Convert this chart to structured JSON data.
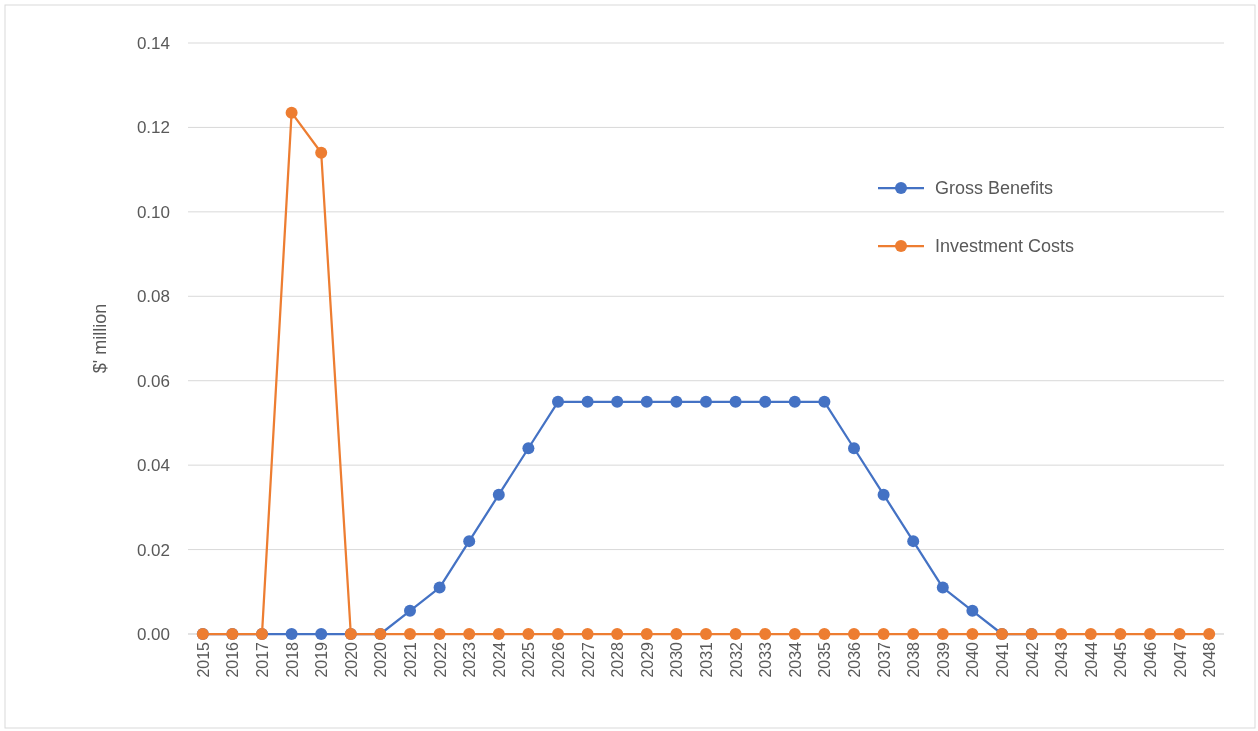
{
  "chart_data": {
    "type": "line",
    "ylabel": "$' million",
    "categories": [
      "2015",
      "2016",
      "2017",
      "2018",
      "2019",
      "2020",
      "2020",
      "2021",
      "2022",
      "2023",
      "2024",
      "2025",
      "2026",
      "2027",
      "2028",
      "2029",
      "2030",
      "2031",
      "2032",
      "2033",
      "2034",
      "2035",
      "2036",
      "2037",
      "2038",
      "2039",
      "2040",
      "2041",
      "2042",
      "2043",
      "2044",
      "2045",
      "2046",
      "2047",
      "2048"
    ],
    "series": [
      {
        "name": "Gross Benefits",
        "color": "#4472c4",
        "values": [
          0,
          0,
          0,
          0,
          0,
          0,
          0,
          0.0055,
          0.011,
          0.022,
          0.033,
          0.044,
          0.055,
          0.055,
          0.055,
          0.055,
          0.055,
          0.055,
          0.055,
          0.055,
          0.055,
          0.055,
          0.044,
          0.033,
          0.022,
          0.011,
          0.0055,
          0,
          0,
          null,
          null,
          null,
          null,
          null,
          null
        ]
      },
      {
        "name": "Investment Costs",
        "color": "#ed7d31",
        "values": [
          0,
          0,
          0,
          0.1235,
          0.114,
          0,
          0,
          0,
          0,
          0,
          0,
          0,
          0,
          0,
          0,
          0,
          0,
          0,
          0,
          0,
          0,
          0,
          0,
          0,
          0,
          0,
          0,
          0,
          0,
          0,
          0,
          0,
          0,
          0,
          0
        ]
      }
    ],
    "ylim": [
      0,
      0.14
    ],
    "yticks": [
      {
        "value": 0,
        "label": "0.00"
      },
      {
        "value": 0.02,
        "label": "0.02"
      },
      {
        "value": 0.04,
        "label": "0.04"
      },
      {
        "value": 0.06,
        "label": "0.06"
      },
      {
        "value": 0.08,
        "label": "0.08"
      },
      {
        "value": 0.1,
        "label": "0.10"
      },
      {
        "value": 0.12,
        "label": "0.12"
      },
      {
        "value": 0.14,
        "label": "0.14"
      }
    ],
    "grid": "y",
    "legend": "right",
    "marker": "circle",
    "line_style": "solid"
  }
}
